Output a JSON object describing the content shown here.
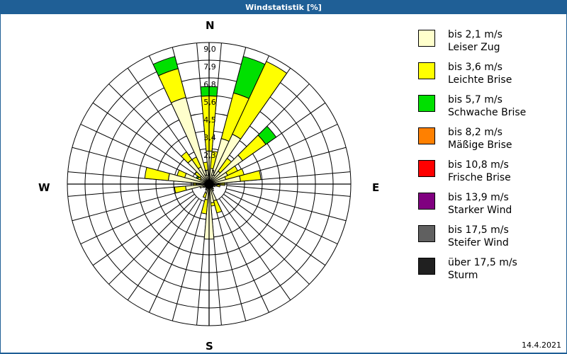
{
  "header": {
    "title": "Windstatistik [%]"
  },
  "compass": {
    "n": "N",
    "e": "E",
    "s": "S",
    "w": "W"
  },
  "footer": {
    "date": "14.4.2021"
  },
  "legend": [
    {
      "range": "bis 2,1 m/s",
      "name": "Leiser Zug",
      "color": "#ffffcc"
    },
    {
      "range": "bis 3,6 m/s",
      "name": "Leichte Brise",
      "color": "#ffff00"
    },
    {
      "range": "bis 5,7 m/s",
      "name": "Schwache Brise",
      "color": "#00e000"
    },
    {
      "range": "bis 8,2 m/s",
      "name": "Mäßige Brise",
      "color": "#ff8000"
    },
    {
      "range": "bis 10,8 m/s",
      "name": "Frische Brise",
      "color": "#ff0000"
    },
    {
      "range": "bis 13,9 m/s",
      "name": "Starker Wind",
      "color": "#800080"
    },
    {
      "range": "bis 17,5 m/s",
      "name": "Steifer Wind",
      "color": "#606060"
    },
    {
      "range": "über 17,5 m/s",
      "name": "Sturm",
      "color": "#202020"
    }
  ],
  "chart_data": {
    "type": "wind-rose",
    "title": "Windstatistik [%]",
    "radial_ticks": [
      "1,1",
      "2,3",
      "3,4",
      "4,5",
      "5,6",
      "6,8",
      "7,9",
      "9,0"
    ],
    "rmax": 9.0,
    "sector_width_deg": 10,
    "classes": [
      "bis 2,1 m/s",
      "bis 3,6 m/s",
      "bis 5,7 m/s"
    ],
    "note": "values are cumulative % per class, estimated from graphic",
    "sectors": [
      {
        "dir": 0,
        "cum": [
          2.1,
          5.6,
          6.2
        ]
      },
      {
        "dir": 10,
        "cum": [
          1.0,
          2.1
        ]
      },
      {
        "dir": 20,
        "cum": [
          3.0,
          6.0,
          8.4
        ]
      },
      {
        "dir": 30,
        "cum": [
          3.5,
          8.6
        ]
      },
      {
        "dir": 40,
        "cum": [
          1.0,
          2.0
        ]
      },
      {
        "dir": 50,
        "cum": [
          2.6,
          4.4,
          5.2
        ]
      },
      {
        "dir": 60,
        "cum": [
          1.3,
          2.0
        ]
      },
      {
        "dir": 70,
        "cum": [
          1.1,
          2.3
        ]
      },
      {
        "dir": 80,
        "cum": [
          2.0,
          3.3
        ]
      },
      {
        "dir": 90,
        "cum": [
          0.6,
          1.0
        ]
      },
      {
        "dir": 100,
        "cum": [
          0.5,
          0.7
        ]
      },
      {
        "dir": 110,
        "cum": [
          0.4
        ]
      },
      {
        "dir": 120,
        "cum": [
          0.3
        ]
      },
      {
        "dir": 130,
        "cum": [
          0.3
        ]
      },
      {
        "dir": 140,
        "cum": [
          0.4
        ]
      },
      {
        "dir": 150,
        "cum": [
          0.5
        ]
      },
      {
        "dir": 160,
        "cum": [
          1.1,
          1.9
        ]
      },
      {
        "dir": 170,
        "cum": [
          1.2,
          1.4
        ]
      },
      {
        "dir": 180,
        "cum": [
          3.5
        ]
      },
      {
        "dir": 190,
        "cum": [
          1.0,
          1.9
        ]
      },
      {
        "dir": 200,
        "cum": [
          0.6,
          0.9
        ]
      },
      {
        "dir": 210,
        "cum": [
          0.4
        ]
      },
      {
        "dir": 220,
        "cum": [
          0.3
        ]
      },
      {
        "dir": 230,
        "cum": [
          0.3
        ]
      },
      {
        "dir": 240,
        "cum": [
          0.4
        ]
      },
      {
        "dir": 250,
        "cum": [
          0.6
        ]
      },
      {
        "dir": 260,
        "cum": [
          1.5,
          2.2
        ]
      },
      {
        "dir": 270,
        "cum": [
          0.8,
          1.0
        ]
      },
      {
        "dir": 280,
        "cum": [
          2.6,
          4.1
        ]
      },
      {
        "dir": 290,
        "cum": [
          1.6,
          2.1
        ]
      },
      {
        "dir": 300,
        "cum": [
          0.6,
          0.8,
          0.9
        ]
      },
      {
        "dir": 310,
        "cum": [
          0.7,
          1.1
        ]
      },
      {
        "dir": 320,
        "cum": [
          1.9,
          2.5
        ]
      },
      {
        "dir": 330,
        "cum": [
          1.2,
          1.9
        ]
      },
      {
        "dir": 340,
        "cum": [
          5.7,
          7.6,
          8.4
        ]
      },
      {
        "dir": 350,
        "cum": [
          0.9,
          1.4
        ]
      }
    ]
  }
}
